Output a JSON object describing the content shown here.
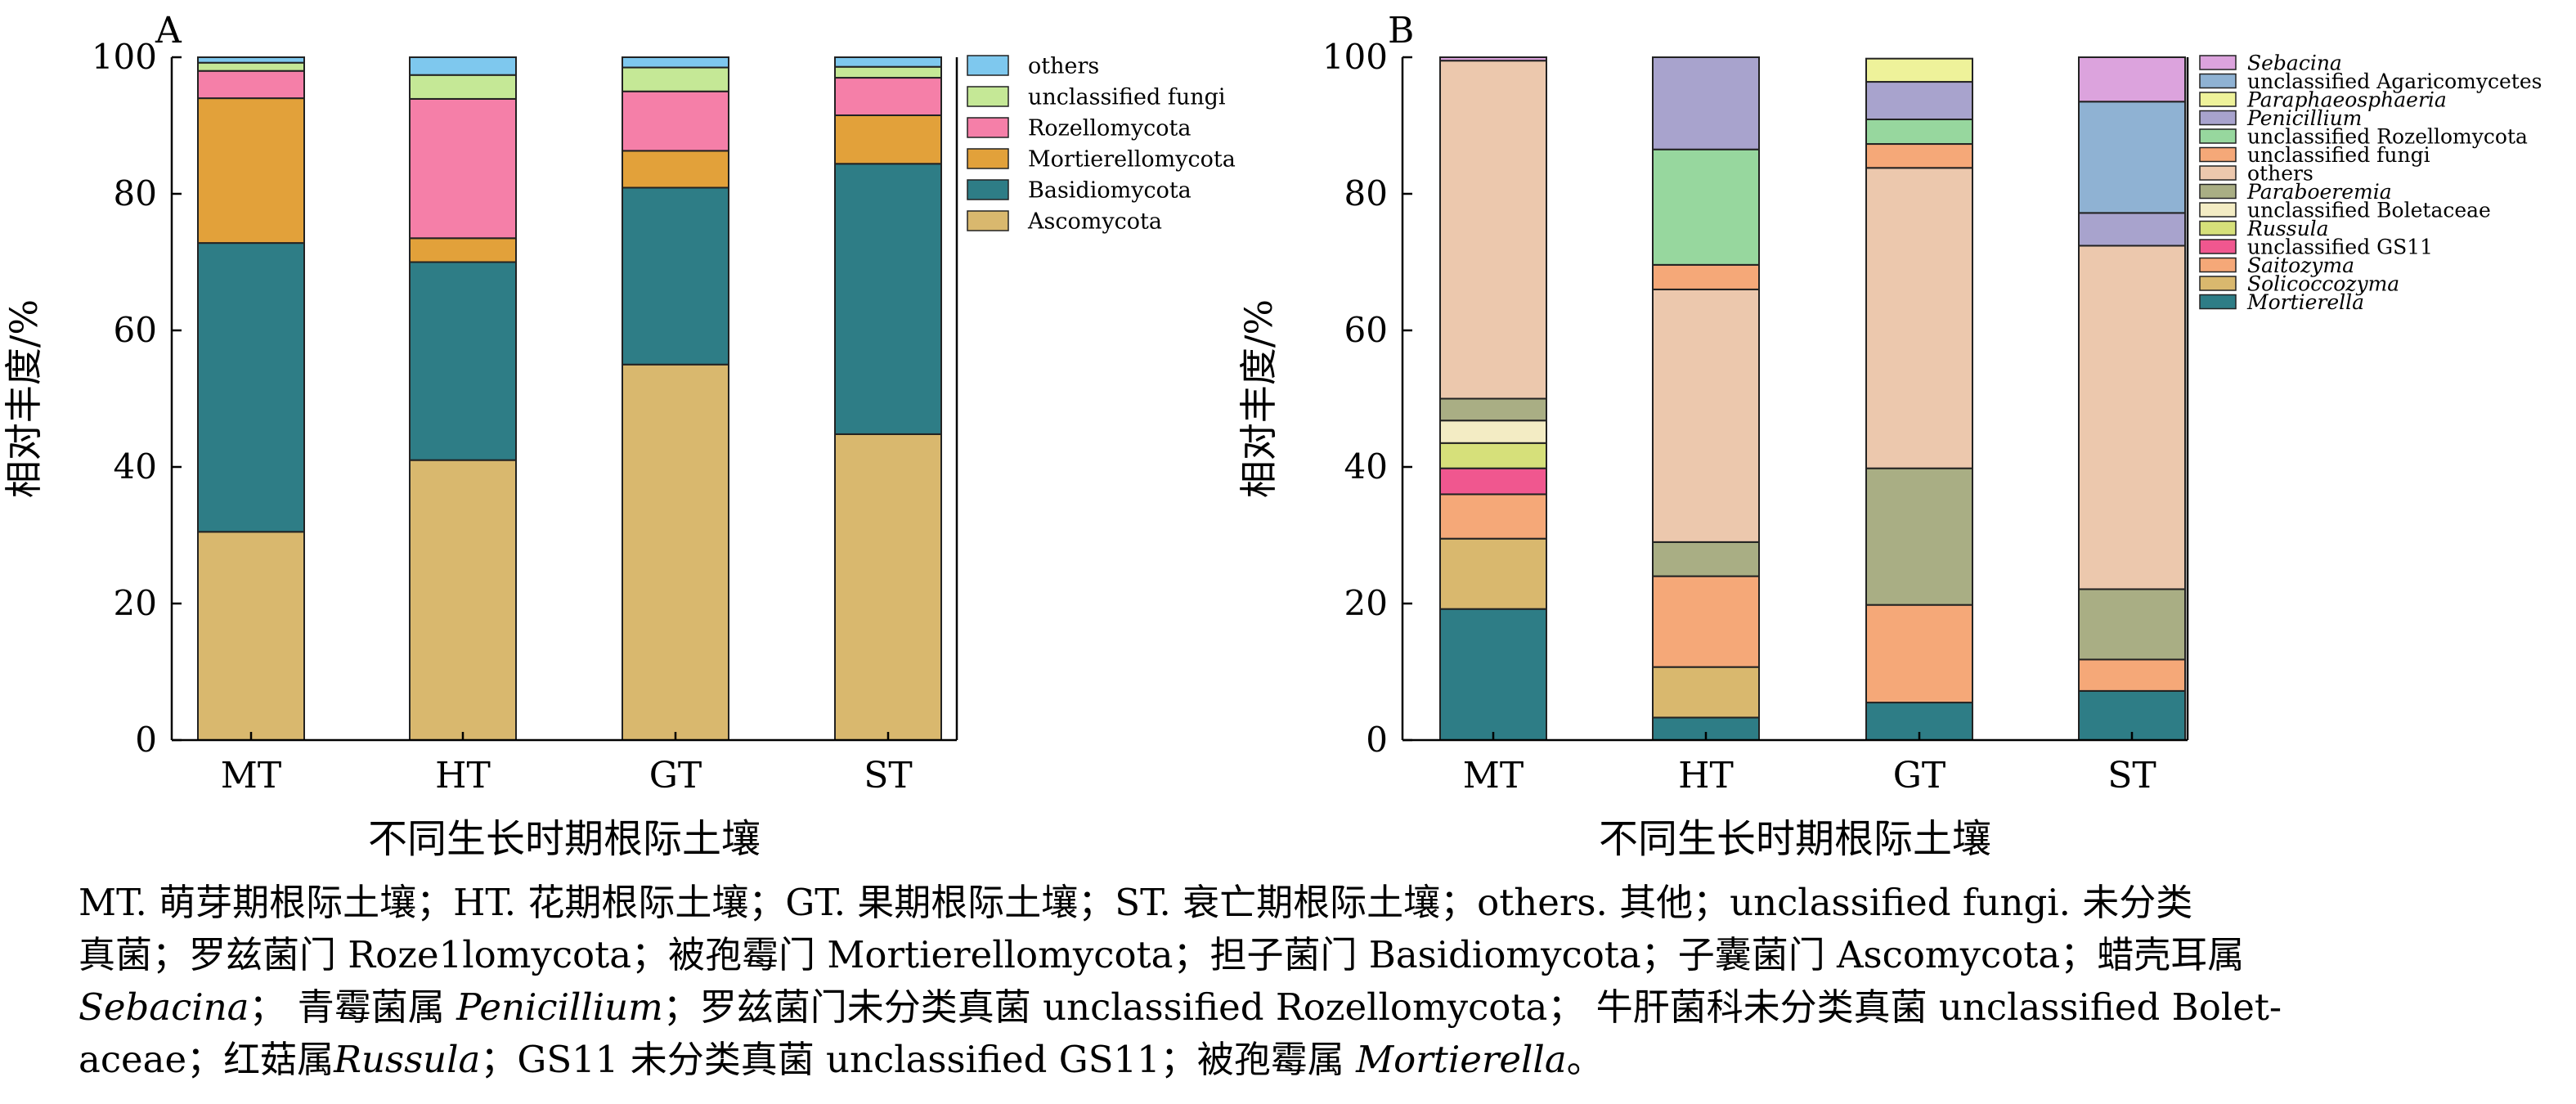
{
  "chart_data": [
    {
      "type": "bar",
      "stacked": true,
      "panel_label": "A",
      "categories": [
        "MT",
        "HT",
        "GT",
        "ST"
      ],
      "xlabel": "不同生长时期根际土壤",
      "ylabel": "相对丰度/%",
      "ylim": [
        0,
        100
      ],
      "yticks": [
        0,
        20,
        40,
        60,
        80,
        100
      ],
      "legend_position": "right",
      "series": [
        {
          "name": "Ascomycota",
          "color": "#d9b86e",
          "values": [
            30.5,
            41.0,
            55.0,
            44.8
          ]
        },
        {
          "name": "Basidiomycota",
          "color": "#2e7d86",
          "values": [
            42.3,
            29.0,
            25.9,
            39.6
          ]
        },
        {
          "name": "Mortierellomycota",
          "color": "#e2a13a",
          "values": [
            21.2,
            3.5,
            5.4,
            7.1
          ]
        },
        {
          "name": "Rozellomycota",
          "color": "#f57fa8",
          "values": [
            4.0,
            20.4,
            8.7,
            5.5
          ]
        },
        {
          "name": "unclassified fungi",
          "color": "#c5e896",
          "values": [
            1.2,
            3.5,
            3.5,
            1.6
          ]
        },
        {
          "name": "others",
          "color": "#7ec8ee",
          "values": [
            0.8,
            2.6,
            1.5,
            1.4
          ]
        }
      ]
    },
    {
      "type": "bar",
      "stacked": true,
      "panel_label": "B",
      "categories": [
        "MT",
        "HT",
        "GT",
        "ST"
      ],
      "xlabel": "不同生长时期根际土壤",
      "ylabel": "相对丰度/%",
      "ylim": [
        0,
        100
      ],
      "yticks": [
        0,
        20,
        40,
        60,
        80,
        100
      ],
      "legend_position": "right",
      "series": [
        {
          "name": "Mortierella",
          "italic": true,
          "color": "#2e7d86",
          "values": [
            19.2,
            3.3,
            5.5,
            7.2
          ]
        },
        {
          "name": "Solicoccozyma",
          "italic": true,
          "color": "#d9b86e",
          "values": [
            10.3,
            7.4,
            0,
            0
          ]
        },
        {
          "name": "Saitozyma",
          "italic": true,
          "color": "#f5a878",
          "values": [
            6.5,
            13.3,
            14.3,
            4.6
          ]
        },
        {
          "name": "unclassified GS11",
          "color": "#f0578f",
          "values": [
            3.8,
            0,
            0,
            0
          ]
        },
        {
          "name": "Russula",
          "italic": true,
          "color": "#d6e07a",
          "values": [
            3.7,
            0,
            0,
            0
          ]
        },
        {
          "name": "unclassified Boletaceae",
          "color": "#f3ecc4",
          "values": [
            3.3,
            0,
            0,
            0
          ]
        },
        {
          "name": "Paraboeremia",
          "italic": true,
          "color": "#a9ae84",
          "values": [
            3.2,
            5.0,
            20.0,
            10.3
          ]
        },
        {
          "name": "others",
          "color": "#ecc8ad",
          "values": [
            49.5,
            37.0,
            44.0,
            50.3
          ]
        },
        {
          "name": "unclassified fungi",
          "color": "#f5a878",
          "values": [
            0,
            3.6,
            3.5,
            0
          ]
        },
        {
          "name": "unclassified Rozellomycota",
          "color": "#97d79e",
          "values": [
            0,
            16.9,
            3.6,
            0
          ]
        },
        {
          "name": "Penicillium",
          "italic": true,
          "color": "#a8a3cd",
          "values": [
            0,
            13.5,
            5.5,
            4.8
          ]
        },
        {
          "name": "Paraphaeosphaeria",
          "italic": true,
          "color": "#eef29a",
          "values": [
            0,
            0,
            3.4,
            0
          ]
        },
        {
          "name": "unclassified Agaricomycetes",
          "color": "#8fb2d3",
          "values": [
            0,
            0,
            0,
            16.3
          ]
        },
        {
          "name": "Sebacina",
          "italic": true,
          "color": "#dca3dd",
          "values": [
            0.5,
            0,
            0,
            6.5
          ]
        }
      ]
    }
  ],
  "caption": {
    "lines": [
      [
        {
          "t": "MT. 萌芽期根际土壤；HT. 花期根际土壤；GT. 果期根际土壤；ST. 衰亡期根际土壤；others. 其他；unclassified fungi. 未分类"
        }
      ],
      [
        {
          "t": "真菌；罗兹菌门 Roze1lomycota；被孢霉门 Mortierellomycota；担子菌门 Basidiomycota；子囊菌门 Ascomycota；蜡壳耳属"
        }
      ],
      [
        {
          "t": "Sebacina",
          "i": true
        },
        {
          "t": "；  青霉菌属 "
        },
        {
          "t": "Penicillium",
          "i": true
        },
        {
          "t": "；罗兹菌门未分类真菌 unclassified Rozellomycota；  牛肝菌科未分类真菌 unclassified Bolet-"
        }
      ],
      [
        {
          "t": "aceae；红菇属"
        },
        {
          "t": "Russula",
          "i": true
        },
        {
          "t": "；GS11 未分类真菌 unclassified GS11；被孢霉属 "
        },
        {
          "t": "Mortierella",
          "i": true
        },
        {
          "t": "。"
        }
      ]
    ]
  }
}
